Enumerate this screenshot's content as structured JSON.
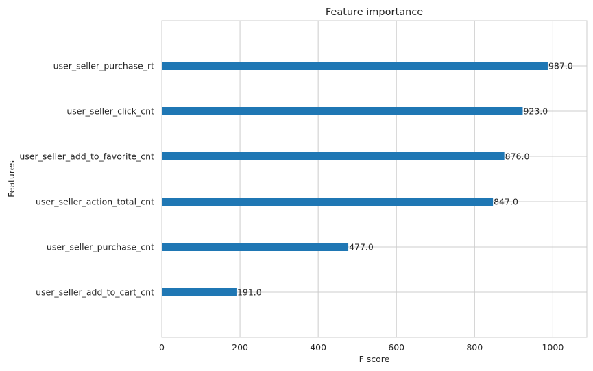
{
  "chart_data": {
    "type": "bar",
    "orientation": "horizontal",
    "title": "Feature importance",
    "xlabel": "F score",
    "ylabel": "Features",
    "xlim": [
      0,
      1087
    ],
    "xticks": [
      "0",
      "200",
      "400",
      "600",
      "800",
      "1000"
    ],
    "grid": true,
    "bar_color": "#1f77b4",
    "categories": [
      "user_seller_purchase_rt",
      "user_seller_click_cnt",
      "user_seller_add_to_favorite_cnt",
      "user_seller_action_total_cnt",
      "user_seller_purchase_cnt",
      "user_seller_add_to_cart_cnt"
    ],
    "values": [
      987,
      923,
      876,
      847,
      477,
      191
    ],
    "value_labels": [
      "987.0",
      "923.0",
      "876.0",
      "847.0",
      "477.0",
      "191.0"
    ]
  }
}
